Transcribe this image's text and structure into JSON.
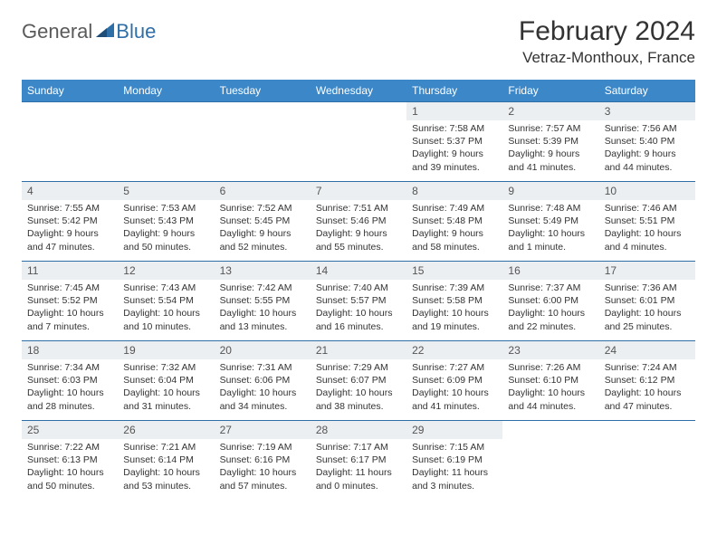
{
  "logo": {
    "part1": "General",
    "part2": "Blue"
  },
  "title": "February 2024",
  "subtitle": "Vetraz-Monthoux, France",
  "colors": {
    "header_bg": "#3b87c8",
    "header_text": "#ffffff",
    "daynum_bg": "#eceff1",
    "border": "#2f6fa8",
    "logo_gray": "#5a5a5a",
    "logo_blue": "#2f6fa8"
  },
  "day_headers": [
    "Sunday",
    "Monday",
    "Tuesday",
    "Wednesday",
    "Thursday",
    "Friday",
    "Saturday"
  ],
  "weeks": [
    [
      {
        "empty": true
      },
      {
        "empty": true
      },
      {
        "empty": true
      },
      {
        "empty": true
      },
      {
        "num": "1",
        "sunrise": "Sunrise: 7:58 AM",
        "sunset": "Sunset: 5:37 PM",
        "daylight": "Daylight: 9 hours and 39 minutes."
      },
      {
        "num": "2",
        "sunrise": "Sunrise: 7:57 AM",
        "sunset": "Sunset: 5:39 PM",
        "daylight": "Daylight: 9 hours and 41 minutes."
      },
      {
        "num": "3",
        "sunrise": "Sunrise: 7:56 AM",
        "sunset": "Sunset: 5:40 PM",
        "daylight": "Daylight: 9 hours and 44 minutes."
      }
    ],
    [
      {
        "num": "4",
        "sunrise": "Sunrise: 7:55 AM",
        "sunset": "Sunset: 5:42 PM",
        "daylight": "Daylight: 9 hours and 47 minutes."
      },
      {
        "num": "5",
        "sunrise": "Sunrise: 7:53 AM",
        "sunset": "Sunset: 5:43 PM",
        "daylight": "Daylight: 9 hours and 50 minutes."
      },
      {
        "num": "6",
        "sunrise": "Sunrise: 7:52 AM",
        "sunset": "Sunset: 5:45 PM",
        "daylight": "Daylight: 9 hours and 52 minutes."
      },
      {
        "num": "7",
        "sunrise": "Sunrise: 7:51 AM",
        "sunset": "Sunset: 5:46 PM",
        "daylight": "Daylight: 9 hours and 55 minutes."
      },
      {
        "num": "8",
        "sunrise": "Sunrise: 7:49 AM",
        "sunset": "Sunset: 5:48 PM",
        "daylight": "Daylight: 9 hours and 58 minutes."
      },
      {
        "num": "9",
        "sunrise": "Sunrise: 7:48 AM",
        "sunset": "Sunset: 5:49 PM",
        "daylight": "Daylight: 10 hours and 1 minute."
      },
      {
        "num": "10",
        "sunrise": "Sunrise: 7:46 AM",
        "sunset": "Sunset: 5:51 PM",
        "daylight": "Daylight: 10 hours and 4 minutes."
      }
    ],
    [
      {
        "num": "11",
        "sunrise": "Sunrise: 7:45 AM",
        "sunset": "Sunset: 5:52 PM",
        "daylight": "Daylight: 10 hours and 7 minutes."
      },
      {
        "num": "12",
        "sunrise": "Sunrise: 7:43 AM",
        "sunset": "Sunset: 5:54 PM",
        "daylight": "Daylight: 10 hours and 10 minutes."
      },
      {
        "num": "13",
        "sunrise": "Sunrise: 7:42 AM",
        "sunset": "Sunset: 5:55 PM",
        "daylight": "Daylight: 10 hours and 13 minutes."
      },
      {
        "num": "14",
        "sunrise": "Sunrise: 7:40 AM",
        "sunset": "Sunset: 5:57 PM",
        "daylight": "Daylight: 10 hours and 16 minutes."
      },
      {
        "num": "15",
        "sunrise": "Sunrise: 7:39 AM",
        "sunset": "Sunset: 5:58 PM",
        "daylight": "Daylight: 10 hours and 19 minutes."
      },
      {
        "num": "16",
        "sunrise": "Sunrise: 7:37 AM",
        "sunset": "Sunset: 6:00 PM",
        "daylight": "Daylight: 10 hours and 22 minutes."
      },
      {
        "num": "17",
        "sunrise": "Sunrise: 7:36 AM",
        "sunset": "Sunset: 6:01 PM",
        "daylight": "Daylight: 10 hours and 25 minutes."
      }
    ],
    [
      {
        "num": "18",
        "sunrise": "Sunrise: 7:34 AM",
        "sunset": "Sunset: 6:03 PM",
        "daylight": "Daylight: 10 hours and 28 minutes."
      },
      {
        "num": "19",
        "sunrise": "Sunrise: 7:32 AM",
        "sunset": "Sunset: 6:04 PM",
        "daylight": "Daylight: 10 hours and 31 minutes."
      },
      {
        "num": "20",
        "sunrise": "Sunrise: 7:31 AM",
        "sunset": "Sunset: 6:06 PM",
        "daylight": "Daylight: 10 hours and 34 minutes."
      },
      {
        "num": "21",
        "sunrise": "Sunrise: 7:29 AM",
        "sunset": "Sunset: 6:07 PM",
        "daylight": "Daylight: 10 hours and 38 minutes."
      },
      {
        "num": "22",
        "sunrise": "Sunrise: 7:27 AM",
        "sunset": "Sunset: 6:09 PM",
        "daylight": "Daylight: 10 hours and 41 minutes."
      },
      {
        "num": "23",
        "sunrise": "Sunrise: 7:26 AM",
        "sunset": "Sunset: 6:10 PM",
        "daylight": "Daylight: 10 hours and 44 minutes."
      },
      {
        "num": "24",
        "sunrise": "Sunrise: 7:24 AM",
        "sunset": "Sunset: 6:12 PM",
        "daylight": "Daylight: 10 hours and 47 minutes."
      }
    ],
    [
      {
        "num": "25",
        "sunrise": "Sunrise: 7:22 AM",
        "sunset": "Sunset: 6:13 PM",
        "daylight": "Daylight: 10 hours and 50 minutes."
      },
      {
        "num": "26",
        "sunrise": "Sunrise: 7:21 AM",
        "sunset": "Sunset: 6:14 PM",
        "daylight": "Daylight: 10 hours and 53 minutes."
      },
      {
        "num": "27",
        "sunrise": "Sunrise: 7:19 AM",
        "sunset": "Sunset: 6:16 PM",
        "daylight": "Daylight: 10 hours and 57 minutes."
      },
      {
        "num": "28",
        "sunrise": "Sunrise: 7:17 AM",
        "sunset": "Sunset: 6:17 PM",
        "daylight": "Daylight: 11 hours and 0 minutes."
      },
      {
        "num": "29",
        "sunrise": "Sunrise: 7:15 AM",
        "sunset": "Sunset: 6:19 PM",
        "daylight": "Daylight: 11 hours and 3 minutes."
      },
      {
        "empty": true
      },
      {
        "empty": true
      }
    ]
  ]
}
